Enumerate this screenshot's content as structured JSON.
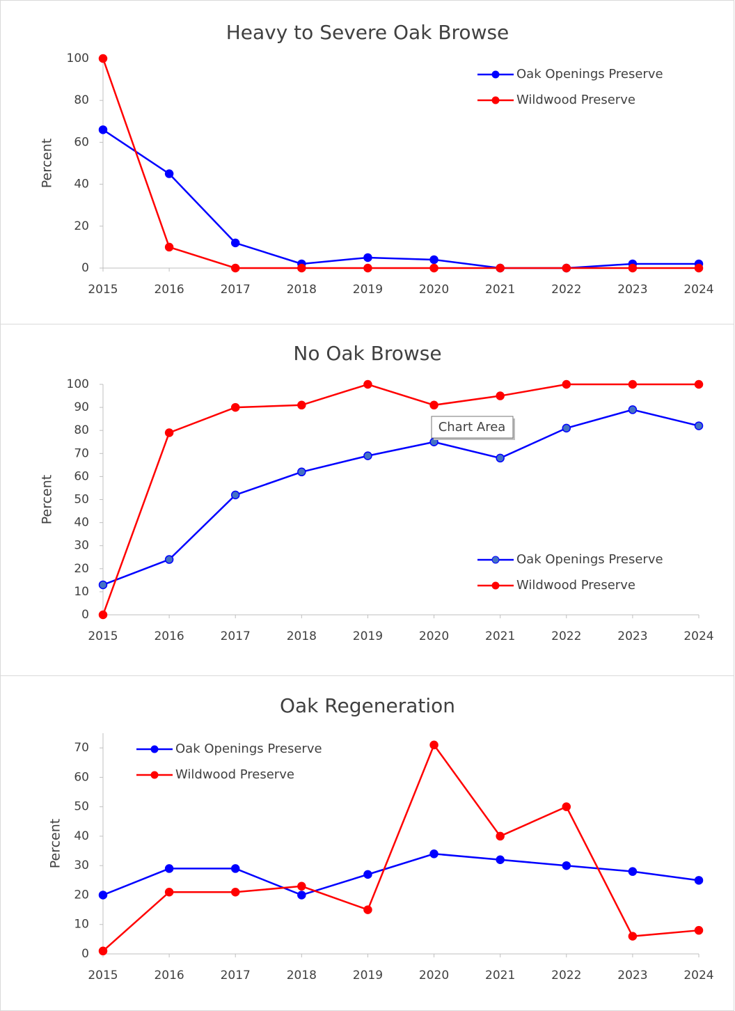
{
  "chart_data": [
    {
      "type": "line",
      "title": "Heavy to Severe Oak Browse",
      "y_label": "Percent",
      "x": [
        2015,
        2016,
        2017,
        2018,
        2019,
        2020,
        2021,
        2022,
        2023,
        2024
      ],
      "xticks": [
        2015,
        2016,
        2017,
        2018,
        2019,
        2020,
        2021,
        2022,
        2023,
        2024
      ],
      "xlim": [
        2015,
        2024
      ],
      "ylim": [
        0,
        100
      ],
      "yticks": [
        0,
        20,
        40,
        60,
        80,
        100
      ],
      "grid": false,
      "legend": "upper right",
      "series": [
        {
          "name": "Oak Openings Preserve",
          "color": "#0000ff",
          "values": [
            66,
            45,
            12,
            2,
            5,
            4,
            0,
            0,
            2,
            2
          ]
        },
        {
          "name": "Wildwood Preserve",
          "color": "#ff0000",
          "values": [
            100,
            10,
            0,
            0,
            0,
            0,
            0,
            0,
            0,
            0
          ]
        }
      ]
    },
    {
      "type": "line",
      "title": "No Oak Browse",
      "y_label": "Percent",
      "tooltip": "Chart Area",
      "x": [
        2015,
        2016,
        2017,
        2018,
        2019,
        2020,
        2021,
        2022,
        2023,
        2024
      ],
      "xticks": [
        2015,
        2016,
        2017,
        2018,
        2019,
        2020,
        2021,
        2022,
        2023,
        2024
      ],
      "xlim": [
        2015,
        2024
      ],
      "ylim": [
        0,
        100
      ],
      "yticks": [
        0,
        10,
        20,
        30,
        40,
        50,
        60,
        70,
        80,
        90,
        100
      ],
      "grid": false,
      "legend": "lower right",
      "series": [
        {
          "name": "Oak Openings Preserve",
          "color": "#0000ff",
          "marker_color": "#4472c4",
          "values": [
            13,
            24,
            52,
            62,
            69,
            75,
            68,
            81,
            89,
            82
          ]
        },
        {
          "name": "Wildwood Preserve",
          "color": "#ff0000",
          "values": [
            0,
            79,
            90,
            91,
            100,
            91,
            95,
            100,
            100,
            100
          ]
        }
      ]
    },
    {
      "type": "line",
      "title": "Oak Regeneration",
      "y_label": "Percent",
      "x": [
        2015,
        2016,
        2017,
        2018,
        2019,
        2020,
        2021,
        2022,
        2023,
        2024
      ],
      "xticks": [
        2015,
        2016,
        2017,
        2018,
        2019,
        2020,
        2021,
        2022,
        2023,
        2024
      ],
      "xlim": [
        2015,
        2024
      ],
      "ylim": [
        0,
        75
      ],
      "yticks": [
        0,
        10,
        20,
        30,
        40,
        50,
        60,
        70
      ],
      "grid": false,
      "legend": "upper left",
      "series": [
        {
          "name": "Oak Openings Preserve",
          "color": "#0000ff",
          "values": [
            20,
            29,
            29,
            20,
            27,
            34,
            32,
            30,
            28,
            25
          ]
        },
        {
          "name": "Wildwood Preserve",
          "color": "#ff0000",
          "values": [
            1,
            21,
            21,
            23,
            15,
            71,
            40,
            50,
            6,
            8
          ]
        }
      ]
    }
  ]
}
